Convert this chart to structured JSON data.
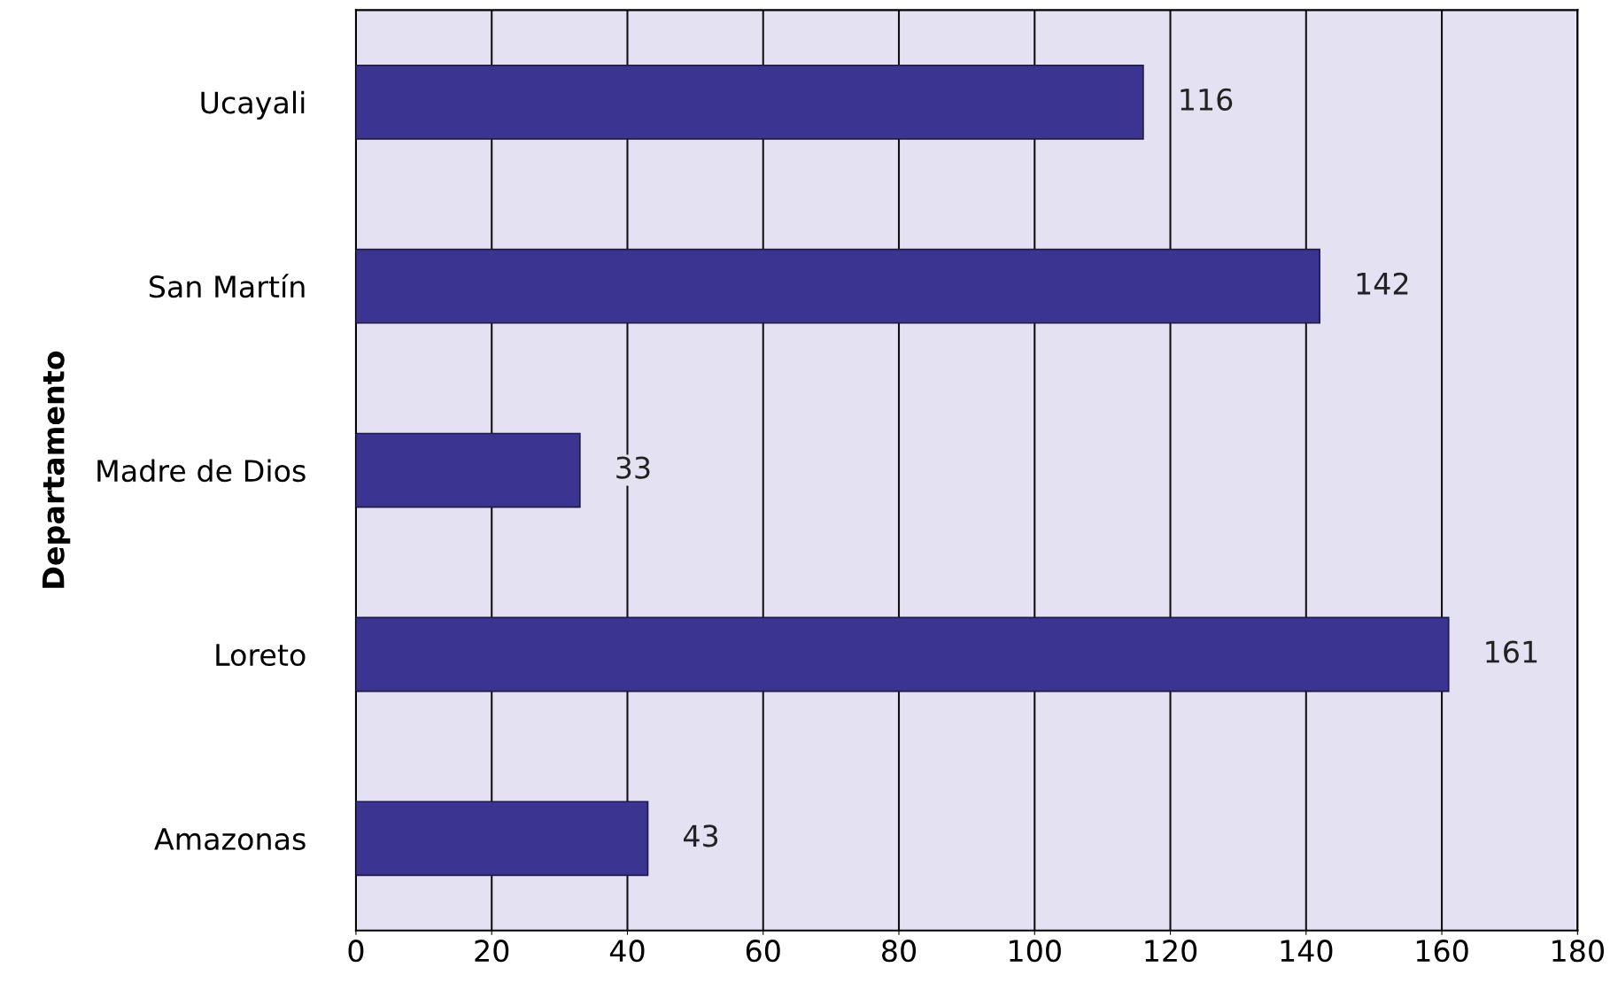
{
  "chart_data": {
    "type": "bar",
    "orientation": "horizontal",
    "ylabel": "Departamento",
    "categories": [
      "Ucayali",
      "San Martín",
      "Madre de Dios",
      "Loreto",
      "Amazonas"
    ],
    "values": [
      116,
      142,
      33,
      161,
      43
    ],
    "color": "#3b3591",
    "xlim": [
      0,
      180
    ],
    "xticks": [
      0,
      20,
      40,
      60,
      80,
      100,
      120,
      140,
      160,
      180
    ],
    "grid": "x",
    "data_labels": true
  }
}
